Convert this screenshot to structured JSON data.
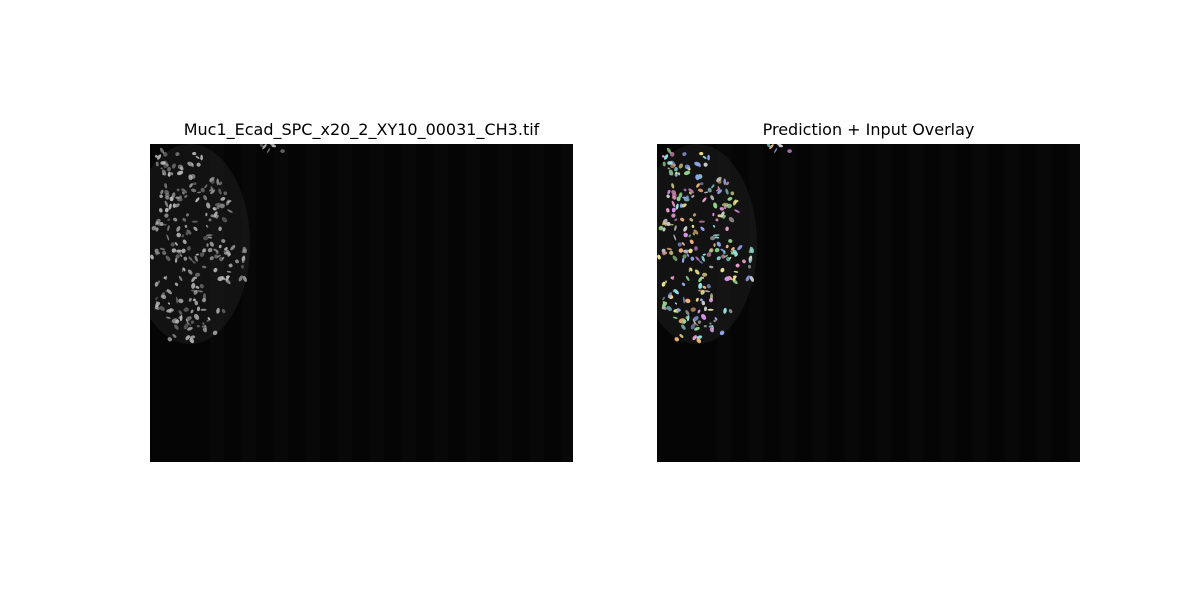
{
  "figure": {
    "panels": [
      {
        "title": "Muc1_Ecad_SPC_x20_2_XY10_00031_CH3.tif",
        "content": "grayscale-microscopy-nuclei"
      },
      {
        "title": "Prediction + Input Overlay",
        "content": "colored-segmentation-overlay"
      }
    ]
  },
  "colors": {
    "figure_background": "#ffffff",
    "image_background": "#050505",
    "nucleus_gray": "#bdbdbd",
    "overlay_palette": [
      "#e89ac6",
      "#8fd18a",
      "#8fa3e8",
      "#e8e08f",
      "#8fe0e0",
      "#d88fe8",
      "#f0b07a",
      "#c8c8c8"
    ]
  }
}
